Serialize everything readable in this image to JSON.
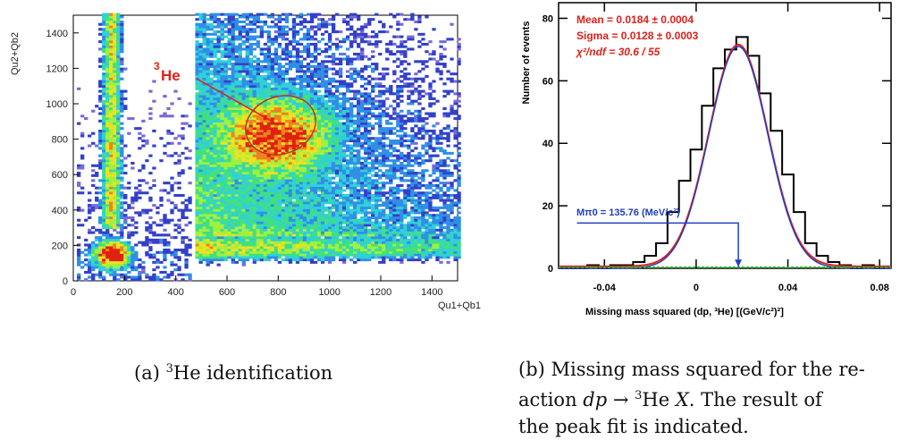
{
  "panel_a": {
    "ylabel": "Qu2+Qb2",
    "xlabel": "Qu1+Qb1",
    "annotation": "He",
    "annotation_sup": "3",
    "caption_prefix": "(a) ",
    "caption_sup": "3",
    "caption_text": "He identification",
    "chart_data": {
      "type": "heatmap",
      "xlim": [
        0,
        1500
      ],
      "ylim": [
        0,
        1500
      ],
      "x_ticks": [
        "0",
        "200",
        "400",
        "600",
        "800",
        "1000",
        "1200",
        "1400"
      ],
      "y_ticks": [
        "0",
        "200",
        "400",
        "600",
        "800",
        "1000",
        "1200",
        "1400"
      ]
    }
  },
  "panel_b": {
    "ylabel": "Number of events",
    "xlabel": "Missing mass squared (dp, ³He) [(GeV/c²)²]",
    "stat_mean": "Mean = 0.0184 ± 0.0004",
    "stat_sigma": "Sigma = 0.0128 ± 0.0003",
    "stat_chi": "χ²/ndf = 30.6 / 55",
    "mpi_label": "Mπ0 = 135.76 (MeV/c²)",
    "caption_line1": "(b) Missing mass squared for the re-",
    "caption_line2_a": "action ",
    "caption_line2_b": "dp",
    "caption_line2_c": " → ",
    "caption_line2_sup": "3",
    "caption_line2_d": "He ",
    "caption_line2_e": "X",
    "caption_line2_f": ". The result of",
    "caption_line3": "the peak fit is indicated.",
    "chart_data": {
      "type": "line",
      "xlim": [
        -0.06,
        0.085
      ],
      "ylim": [
        0,
        85
      ],
      "x_ticks": [
        "-0.04",
        "0",
        "0.04",
        "0.08"
      ],
      "x_tick_values": [
        -0.04,
        0,
        0.04,
        0.08
      ],
      "y_ticks": [
        "0",
        "20",
        "40",
        "60",
        "80"
      ],
      "y_tick_values": [
        0,
        20,
        40,
        60,
        80
      ],
      "fit": {
        "mean": 0.0184,
        "sigma": 0.0128,
        "peak": 71
      },
      "marker_x": 0.0184,
      "series": [
        {
          "x": [
            -0.06,
            -0.055,
            -0.05,
            -0.045,
            -0.04,
            -0.035,
            -0.03,
            -0.025,
            -0.02,
            -0.015,
            -0.01,
            -0.005,
            0,
            0.005,
            0.01,
            0.015,
            0.02,
            0.025,
            0.03,
            0.035,
            0.04,
            0.045,
            0.05,
            0.055,
            0.06,
            0.065,
            0.07,
            0.075,
            0.08
          ],
          "values": [
            0,
            0,
            0,
            1,
            0,
            1,
            1,
            2,
            4,
            8,
            18,
            28,
            38,
            52,
            64,
            70,
            74,
            68,
            56,
            44,
            30,
            18,
            8,
            4,
            2,
            1,
            0,
            1,
            0
          ]
        }
      ]
    }
  }
}
